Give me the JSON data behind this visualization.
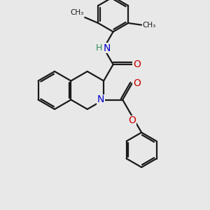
{
  "bg_color": "#e8e8e8",
  "bond_color": "#1a1a1a",
  "bond_width": 1.6,
  "N_color": "#0000cc",
  "O_color": "#cc0000",
  "H_color": "#2e8b57",
  "font_size": 9,
  "fig_size": [
    3.0,
    3.0
  ],
  "dpi": 100,
  "xlim": [
    0,
    10
  ],
  "ylim": [
    0,
    10
  ]
}
